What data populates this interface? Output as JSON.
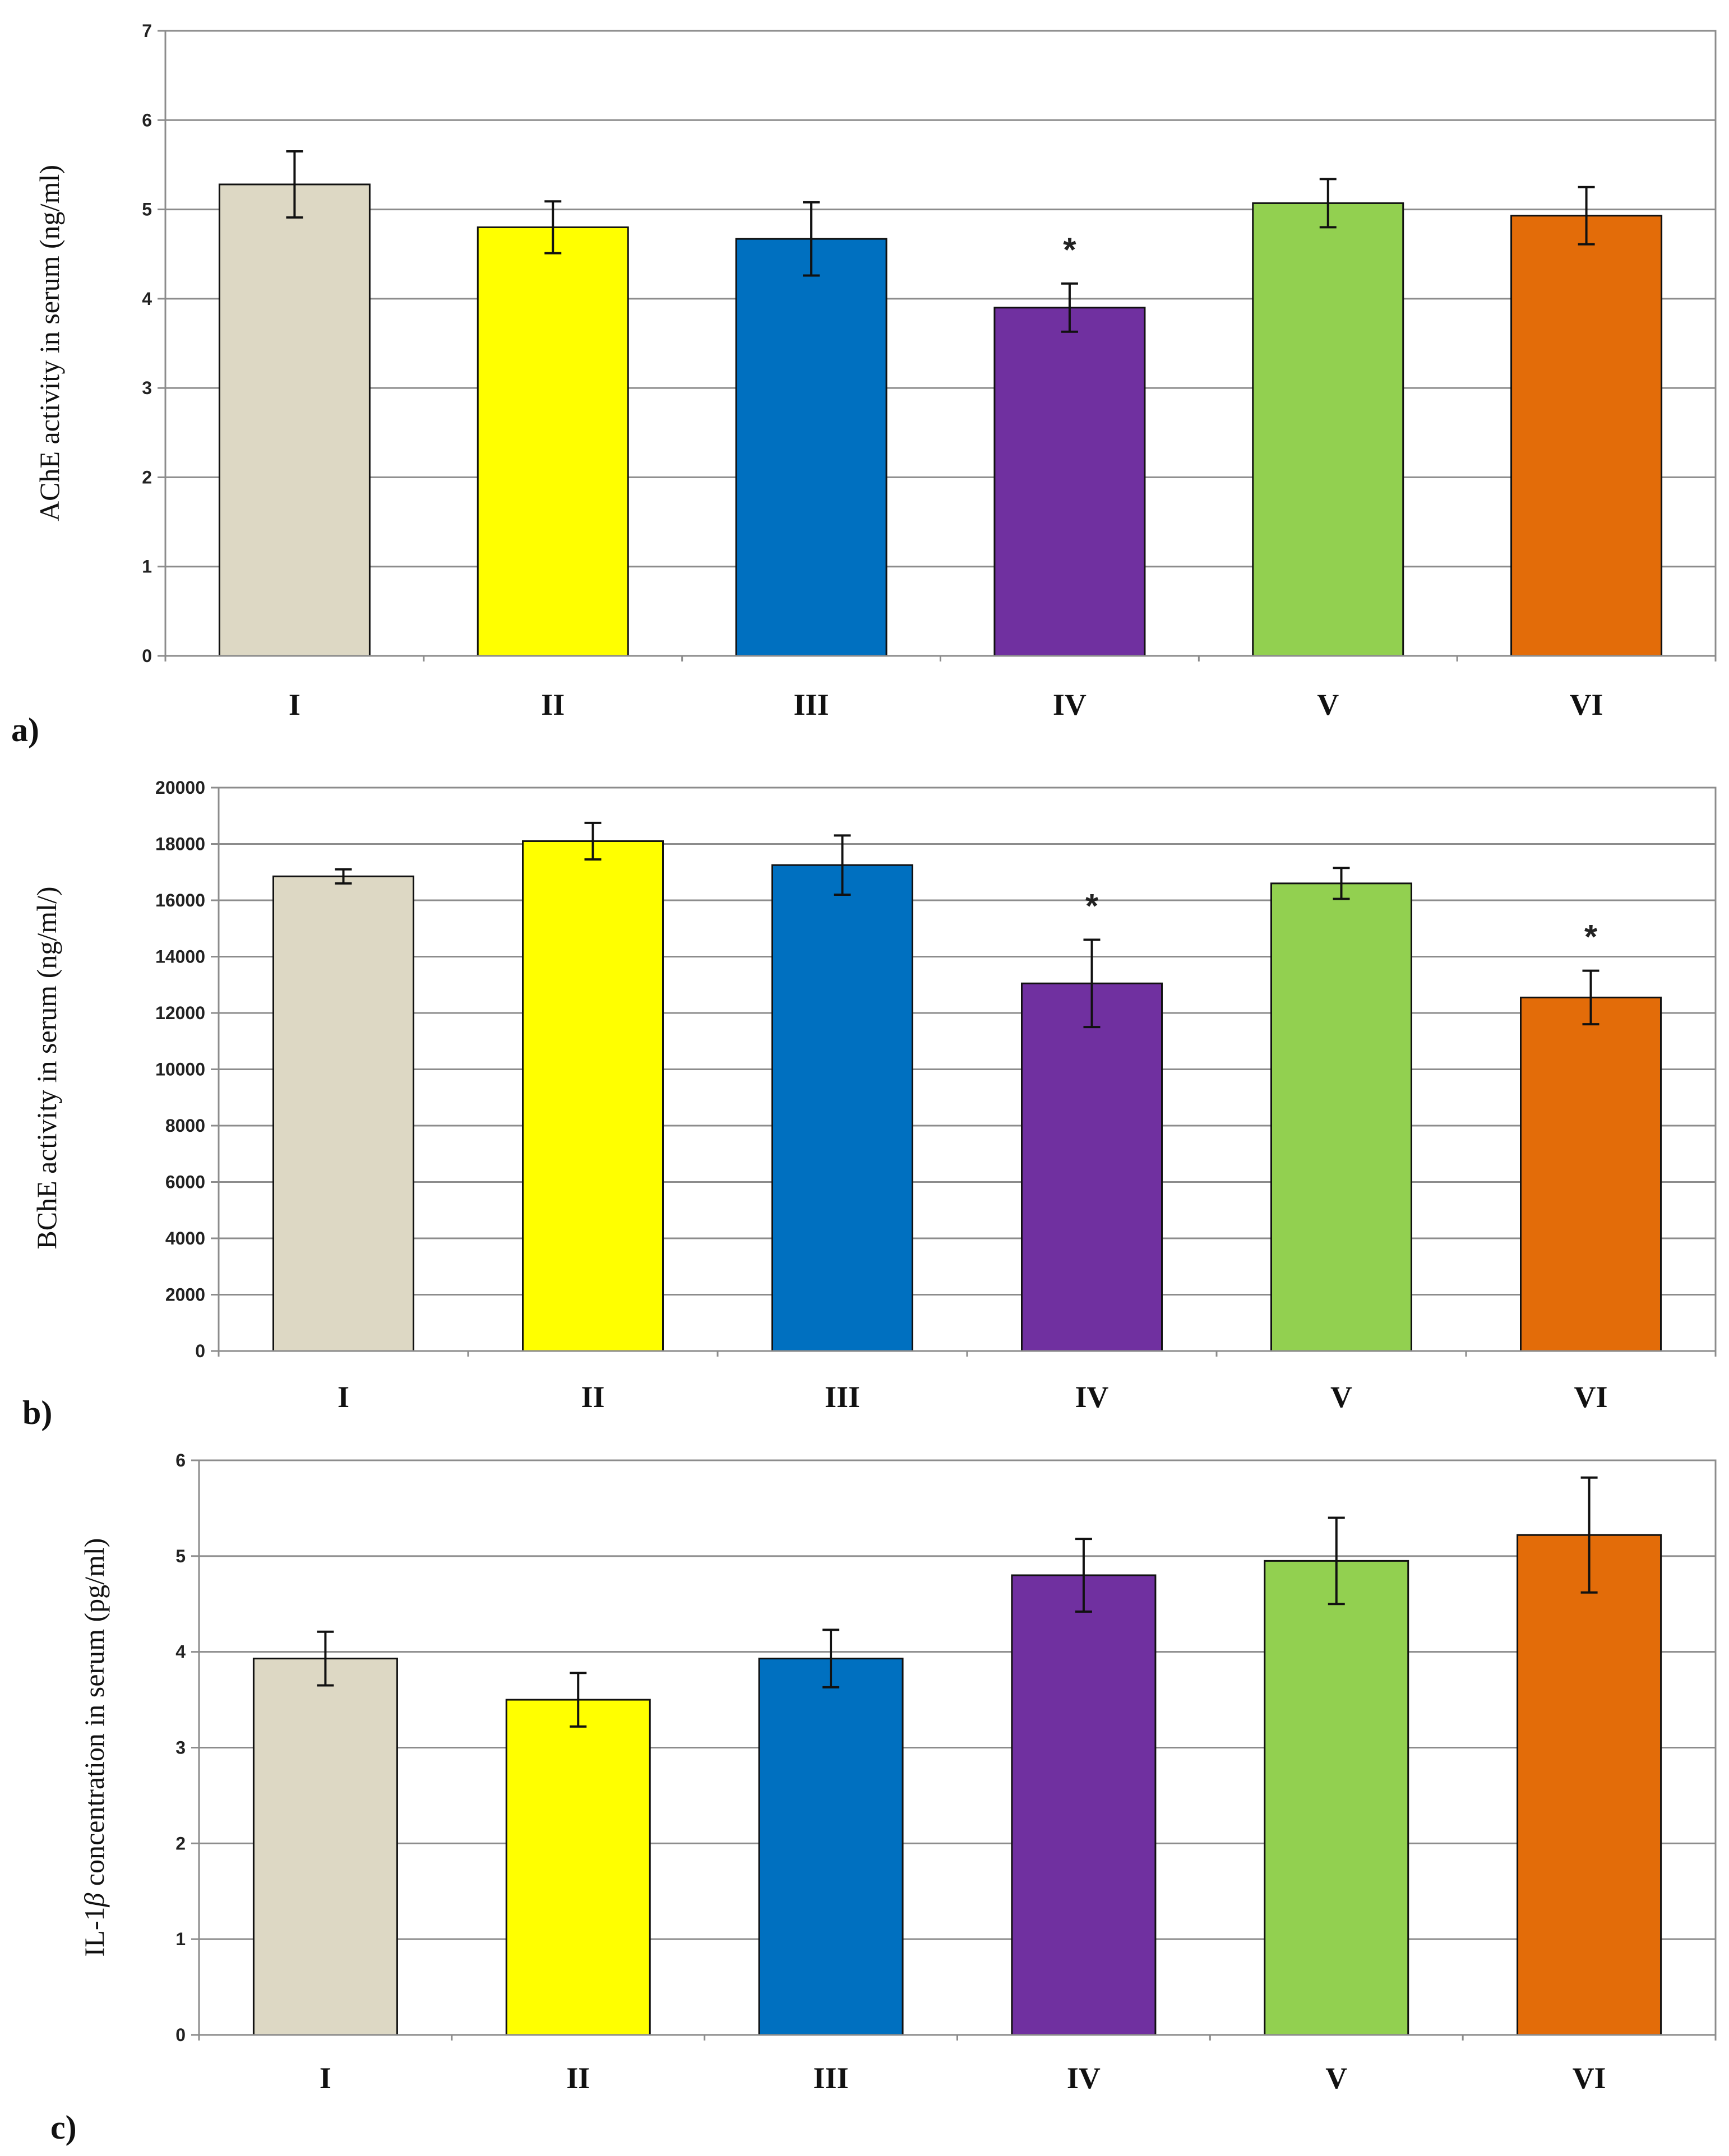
{
  "chart_data": [
    {
      "type": "bar",
      "panel_label": "a)",
      "ylabel": "AChE activity in serum (ng/ml)",
      "xlabel": "",
      "categories": [
        "I",
        "II",
        "III",
        "IV",
        "V",
        "VI"
      ],
      "values": [
        5.28,
        4.8,
        4.67,
        3.9,
        5.07,
        4.93
      ],
      "errors": [
        0.37,
        0.29,
        0.41,
        0.27,
        0.27,
        0.32
      ],
      "significance": [
        "",
        "",
        "",
        "*",
        "",
        ""
      ],
      "ylim": [
        0,
        7
      ],
      "yticks": [
        "0",
        "1",
        "2",
        "3",
        "4",
        "5",
        "6",
        "7"
      ],
      "grid": true
    },
    {
      "type": "bar",
      "panel_label": "b)",
      "ylabel": "BChE activity in serum (ng/ml/)",
      "xlabel": "",
      "categories": [
        "I",
        "II",
        "III",
        "IV",
        "V",
        "VI"
      ],
      "values": [
        16850,
        18100,
        17250,
        13050,
        16600,
        12550
      ],
      "errors": [
        250,
        650,
        1050,
        1550,
        550,
        950
      ],
      "significance": [
        "",
        "",
        "",
        "*",
        "",
        "*"
      ],
      "ylim": [
        0,
        20000
      ],
      "yticks": [
        "0",
        "2000",
        "4000",
        "6000",
        "8000",
        "10000",
        "12000",
        "14000",
        "16000",
        "18000",
        "20000"
      ],
      "grid": true
    },
    {
      "type": "bar",
      "panel_label": "c)",
      "ylabel_prefix": "IL-1",
      "ylabel_symbol": "β",
      "ylabel_suffix": " concentration in serum (pg/ml)",
      "xlabel": "",
      "categories": [
        "I",
        "II",
        "III",
        "IV",
        "V",
        "VI"
      ],
      "values": [
        3.93,
        3.5,
        3.93,
        4.8,
        4.95,
        5.22
      ],
      "errors": [
        0.28,
        0.28,
        0.3,
        0.38,
        0.45,
        0.6
      ],
      "significance": [
        "",
        "",
        "",
        "",
        "",
        ""
      ],
      "ylim": [
        0,
        6
      ],
      "yticks": [
        "0",
        "1",
        "2",
        "3",
        "4",
        "5",
        "6"
      ],
      "grid": true
    }
  ],
  "colors": {
    "bars": [
      "#ddd8c4",
      "#ffff00",
      "#0070c0",
      "#7030a0",
      "#92d050",
      "#e36c09"
    ],
    "grid": "#8c8c8c",
    "axis": "#8c8c8c"
  }
}
